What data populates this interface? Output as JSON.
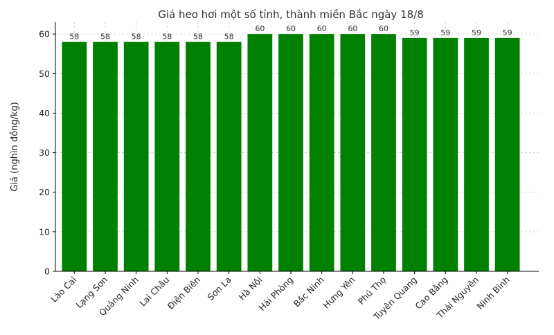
{
  "chart_data": {
    "type": "bar",
    "title": "Giá heo hơi một số tỉnh, thành miền Bắc ngày 18/8",
    "xlabel": "",
    "ylabel": "Giá (nghìn đồng/kg)",
    "categories": [
      "Lào Cai",
      "Lạng Sơn",
      "Quảng Ninh",
      "Lai Châu",
      "Điện Biên",
      "Sơn La",
      "Hà Nội",
      "Hải Phòng",
      "Bắc Ninh",
      "Hưng Yên",
      "Phú Thọ",
      "Tuyên Quang",
      "Cao Bằng",
      "Thái Nguyên",
      "Ninh Bình"
    ],
    "values": [
      58,
      58,
      58,
      58,
      58,
      58,
      60,
      60,
      60,
      60,
      60,
      59,
      59,
      59,
      59
    ],
    "ylim": [
      0,
      63
    ],
    "yticks": [
      0,
      10,
      20,
      30,
      40,
      50,
      60
    ],
    "grid": true,
    "bar_color": "#008000"
  }
}
